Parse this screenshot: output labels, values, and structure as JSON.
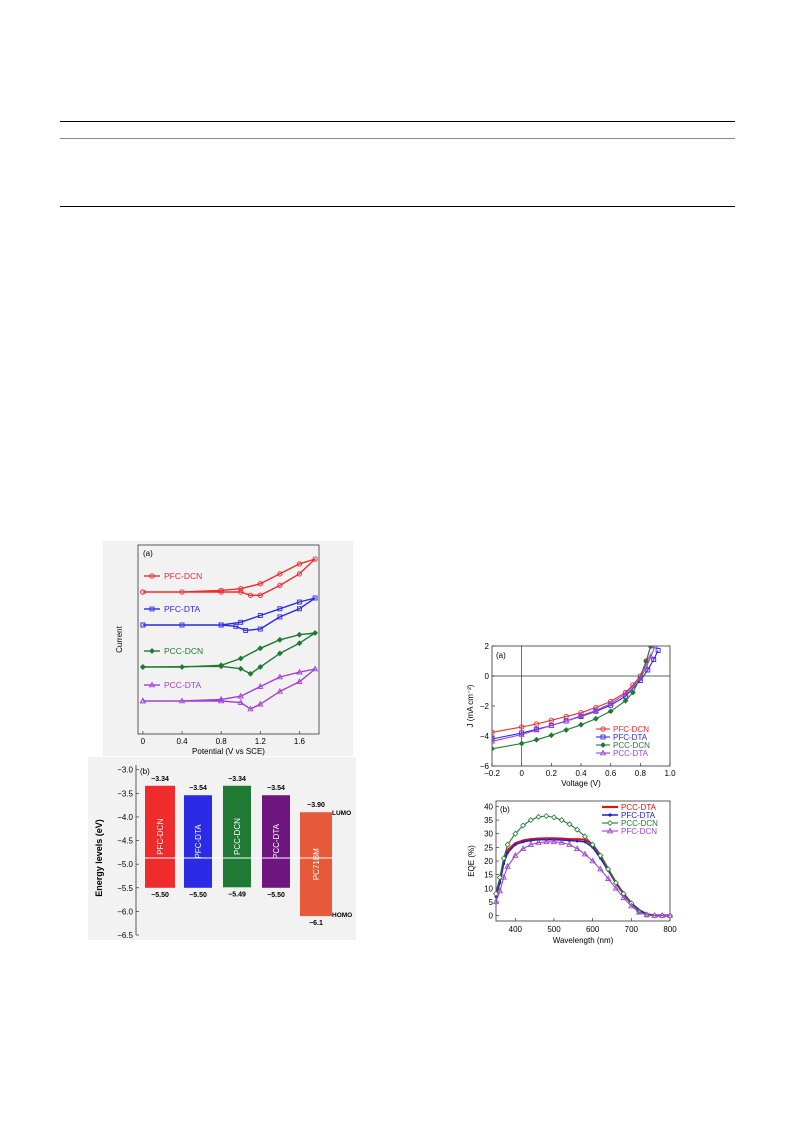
{
  "colors": {
    "red": "#f02b2b",
    "blue": "#2b2be6",
    "green": "#1f7a33",
    "purple": "#a040d8",
    "eb_purple": "#6f1580",
    "pcbm": "#e65a3a"
  },
  "cv": {
    "panel_label": "(a)",
    "xlabel": "Potential (V vs SCE)",
    "ylabel": "Current",
    "xticks": [
      "0",
      "0.4",
      "0.8",
      "1.2",
      "1.6"
    ],
    "legend": [
      "PFC-DCN",
      "PFC-DTA",
      "PCC-DCN",
      "PCC-DTA"
    ]
  },
  "energy": {
    "panel_label": "(b)",
    "ylabel": "Energy levels (eV)",
    "yticks": [
      "−3.0",
      "−3.5",
      "−4.0",
      "−4.5",
      "−5.0",
      "−5.5",
      "−6.0",
      "−6.5"
    ],
    "lumo_label": "LUMO",
    "homo_label": "HOMO"
  },
  "jv": {
    "panel_label": "(a)",
    "xlabel": "Voltage (V)",
    "ylabel": "J (mA cm⁻²)",
    "xticks": [
      "−0.2",
      "0",
      "0.2",
      "0.4",
      "0.6",
      "0.8",
      "1.0"
    ],
    "yticks": [
      "2",
      "0",
      "−2",
      "−4",
      "−6"
    ],
    "legend": [
      "PFC-DCN",
      "PFC-DTA",
      "PCC-DCN",
      "PCC-DTA"
    ]
  },
  "eqe": {
    "panel_label": "(b)",
    "xlabel": "Wavelength (nm)",
    "ylabel": "EQE (%)",
    "xticks": [
      "400",
      "500",
      "600",
      "700",
      "800"
    ],
    "yticks": [
      "40",
      "35",
      "30",
      "25",
      "20",
      "15",
      "10",
      "5",
      "0"
    ],
    "legend": [
      "PCC-DTA",
      "PFC-DTA",
      "PCC-DCN",
      "PFC-DCN"
    ]
  },
  "chart_data": [
    {
      "type": "line",
      "xlabel": "Potential (V vs SCE)",
      "ylabel": "Current",
      "xlim": [
        -0.05,
        1.8
      ],
      "series": [
        {
          "name": "PFC-DCN",
          "color": "#f02b2b",
          "forward": [
            [
              0,
              0
            ],
            [
              0.4,
              0
            ],
            [
              0.8,
              0.05
            ],
            [
              1.0,
              0.1
            ],
            [
              1.2,
              0.25
            ],
            [
              1.4,
              0.55
            ],
            [
              1.6,
              0.85
            ],
            [
              1.76,
              1.0
            ]
          ],
          "reverse": [
            [
              1.76,
              1.0
            ],
            [
              1.6,
              0.55
            ],
            [
              1.4,
              0.2
            ],
            [
              1.2,
              -0.1
            ],
            [
              1.1,
              -0.1
            ],
            [
              1.0,
              0.0
            ],
            [
              0.8,
              0.0
            ],
            [
              0,
              0
            ]
          ]
        },
        {
          "name": "PFC-DTA",
          "color": "#2b2be6",
          "forward": [
            [
              0,
              0
            ],
            [
              0.4,
              0
            ],
            [
              0.8,
              0
            ],
            [
              1.0,
              0.1
            ],
            [
              1.2,
              0.35
            ],
            [
              1.4,
              0.6
            ],
            [
              1.6,
              0.85
            ],
            [
              1.76,
              1.0
            ]
          ],
          "reverse": [
            [
              1.76,
              1.0
            ],
            [
              1.6,
              0.6
            ],
            [
              1.4,
              0.3
            ],
            [
              1.2,
              -0.15
            ],
            [
              1.05,
              -0.2
            ],
            [
              0.95,
              -0.05
            ],
            [
              0.8,
              0
            ],
            [
              0,
              0
            ]
          ]
        },
        {
          "name": "PCC-DCN",
          "color": "#1f7a33",
          "forward": [
            [
              0,
              0
            ],
            [
              0.4,
              0
            ],
            [
              0.8,
              0.05
            ],
            [
              1.0,
              0.25
            ],
            [
              1.2,
              0.55
            ],
            [
              1.4,
              0.8
            ],
            [
              1.6,
              0.95
            ],
            [
              1.76,
              1.0
            ]
          ],
          "reverse": [
            [
              1.76,
              1.0
            ],
            [
              1.6,
              0.7
            ],
            [
              1.4,
              0.4
            ],
            [
              1.2,
              0.0
            ],
            [
              1.1,
              -0.2
            ],
            [
              1.0,
              -0.05
            ],
            [
              0.8,
              0.02
            ],
            [
              0,
              0
            ]
          ]
        },
        {
          "name": "PCC-DTA",
          "color": "#a040d8",
          "forward": [
            [
              0,
              0
            ],
            [
              0.4,
              0
            ],
            [
              0.8,
              0.05
            ],
            [
              1.0,
              0.15
            ],
            [
              1.2,
              0.45
            ],
            [
              1.4,
              0.75
            ],
            [
              1.6,
              0.9
            ],
            [
              1.76,
              1.0
            ]
          ],
          "reverse": [
            [
              1.76,
              1.0
            ],
            [
              1.6,
              0.6
            ],
            [
              1.4,
              0.3
            ],
            [
              1.2,
              -0.1
            ],
            [
              1.1,
              -0.25
            ],
            [
              1.0,
              -0.05
            ],
            [
              0.8,
              0.0
            ],
            [
              0,
              0
            ]
          ]
        }
      ]
    },
    {
      "type": "bar",
      "ylabel": "Energy levels (eV)",
      "ylim": [
        -6.5,
        -2.9
      ],
      "categories": [
        "PFC-DCN",
        "PFC-DTA",
        "PCC-DCN",
        "PCC-DTA",
        "PC71BM"
      ],
      "lumo": [
        -3.34,
        -3.54,
        -3.34,
        -3.54,
        -3.9
      ],
      "homo": [
        -5.5,
        -5.5,
        -5.49,
        -5.5,
        -6.1
      ],
      "lumo_labels": [
        "−3.34",
        "−3.54",
        "−3.34",
        "−3.54",
        "−3.90"
      ],
      "homo_labels": [
        "−5.50",
        "−5.50",
        "−5.49",
        "−5.50",
        "−6.1"
      ],
      "bar_labels": [
        "PFC-DCN",
        "PFC-DTA",
        "PCC-DCN",
        "PCC-DTA",
        "PC71BM"
      ],
      "colors": [
        "#f02b2b",
        "#2b2be6",
        "#1f7a33",
        "#6f1580",
        "#e65a3a"
      ],
      "work_function_line": -4.87
    },
    {
      "type": "line",
      "xlabel": "Voltage (V)",
      "ylabel": "J (mA cm⁻²)",
      "xlim": [
        -0.2,
        1.0
      ],
      "ylim": [
        -6,
        2
      ],
      "series": [
        {
          "name": "PFC-DCN",
          "color": "#f02b2b",
          "x": [
            -0.2,
            0,
            0.1,
            0.2,
            0.3,
            0.4,
            0.5,
            0.6,
            0.7,
            0.75,
            0.8,
            0.84,
            0.87
          ],
          "y": [
            -3.75,
            -3.4,
            -3.2,
            -2.95,
            -2.7,
            -2.45,
            -2.1,
            -1.7,
            -1.1,
            -0.6,
            0.0,
            1.0,
            2.0
          ]
        },
        {
          "name": "PFC-DTA",
          "color": "#2b2be6",
          "x": [
            -0.2,
            0,
            0.1,
            0.2,
            0.3,
            0.4,
            0.5,
            0.6,
            0.7,
            0.8,
            0.85,
            0.89,
            0.92
          ],
          "y": [
            -4.2,
            -3.8,
            -3.55,
            -3.3,
            -3.0,
            -2.7,
            -2.35,
            -1.95,
            -1.35,
            -0.3,
            0.4,
            1.1,
            1.7
          ]
        },
        {
          "name": "PCC-DCN",
          "color": "#1f7a33",
          "x": [
            -0.2,
            0,
            0.1,
            0.2,
            0.3,
            0.4,
            0.5,
            0.6,
            0.7,
            0.75,
            0.8,
            0.84,
            0.87
          ],
          "y": [
            -4.85,
            -4.5,
            -4.25,
            -3.95,
            -3.6,
            -3.25,
            -2.85,
            -2.35,
            -1.65,
            -1.1,
            -0.1,
            1.0,
            2.0
          ]
        },
        {
          "name": "PCC-DTA",
          "color": "#a040d8",
          "x": [
            -0.2,
            0,
            0.1,
            0.2,
            0.3,
            0.4,
            0.5,
            0.6,
            0.7,
            0.8,
            0.84,
            0.87,
            0.9
          ],
          "y": [
            -4.35,
            -3.9,
            -3.6,
            -3.3,
            -3.0,
            -2.65,
            -2.3,
            -1.85,
            -1.2,
            -0.15,
            0.6,
            1.3,
            2.0
          ]
        }
      ]
    },
    {
      "type": "line",
      "xlabel": "Wavelength (nm)",
      "ylabel": "EQE (%)",
      "xlim": [
        350,
        800
      ],
      "ylim": [
        -2,
        42
      ],
      "series": [
        {
          "name": "PCC-DTA",
          "color": "#e01010",
          "x": [
            350,
            360,
            370,
            380,
            400,
            420,
            440,
            460,
            480,
            500,
            520,
            540,
            560,
            580,
            600,
            620,
            640,
            660,
            680,
            700,
            720,
            740,
            760,
            780,
            800
          ],
          "y": [
            8,
            13,
            20,
            24,
            26.5,
            27.5,
            28,
            28.2,
            28.3,
            28.3,
            28.2,
            28,
            28,
            27.8,
            26,
            22,
            17,
            12,
            8,
            4.5,
            2,
            0.5,
            0,
            0,
            0
          ]
        },
        {
          "name": "PFC-DTA",
          "color": "#2020cc",
          "x": [
            350,
            360,
            370,
            380,
            400,
            420,
            440,
            460,
            480,
            500,
            520,
            540,
            560,
            580,
            600,
            620,
            640,
            660,
            680,
            700,
            720,
            740,
            760,
            780,
            800
          ],
          "y": [
            7,
            12,
            19,
            23,
            26,
            27,
            27.5,
            27.8,
            27.8,
            27.8,
            27.7,
            27.5,
            27.3,
            27,
            25,
            21,
            16.5,
            12,
            8,
            4.5,
            2,
            0.5,
            0,
            0,
            0
          ]
        },
        {
          "name": "PCC-DCN",
          "color": "#1f7a33",
          "x": [
            350,
            360,
            370,
            380,
            400,
            420,
            440,
            460,
            480,
            500,
            520,
            540,
            560,
            580,
            600,
            620,
            640,
            660,
            680,
            700,
            720,
            740,
            760,
            780,
            800
          ],
          "y": [
            8,
            14,
            21,
            26,
            30,
            33,
            35,
            36.2,
            36.5,
            36,
            35,
            33.5,
            31.5,
            29,
            26,
            22,
            17,
            12,
            8,
            4.5,
            1.5,
            0.3,
            0,
            0,
            0
          ]
        },
        {
          "name": "PFC-DCN",
          "color": "#a040d8",
          "x": [
            350,
            360,
            370,
            380,
            400,
            420,
            440,
            460,
            480,
            500,
            520,
            540,
            560,
            580,
            600,
            620,
            640,
            660,
            680,
            700,
            720,
            740,
            760,
            780,
            800
          ],
          "y": [
            5,
            9,
            14,
            18,
            22,
            24.5,
            26,
            26.8,
            27,
            27,
            26.8,
            26,
            24.5,
            22.5,
            20,
            17,
            13.5,
            10,
            6.5,
            3.5,
            1.2,
            0.2,
            0,
            0,
            0
          ]
        }
      ]
    }
  ]
}
